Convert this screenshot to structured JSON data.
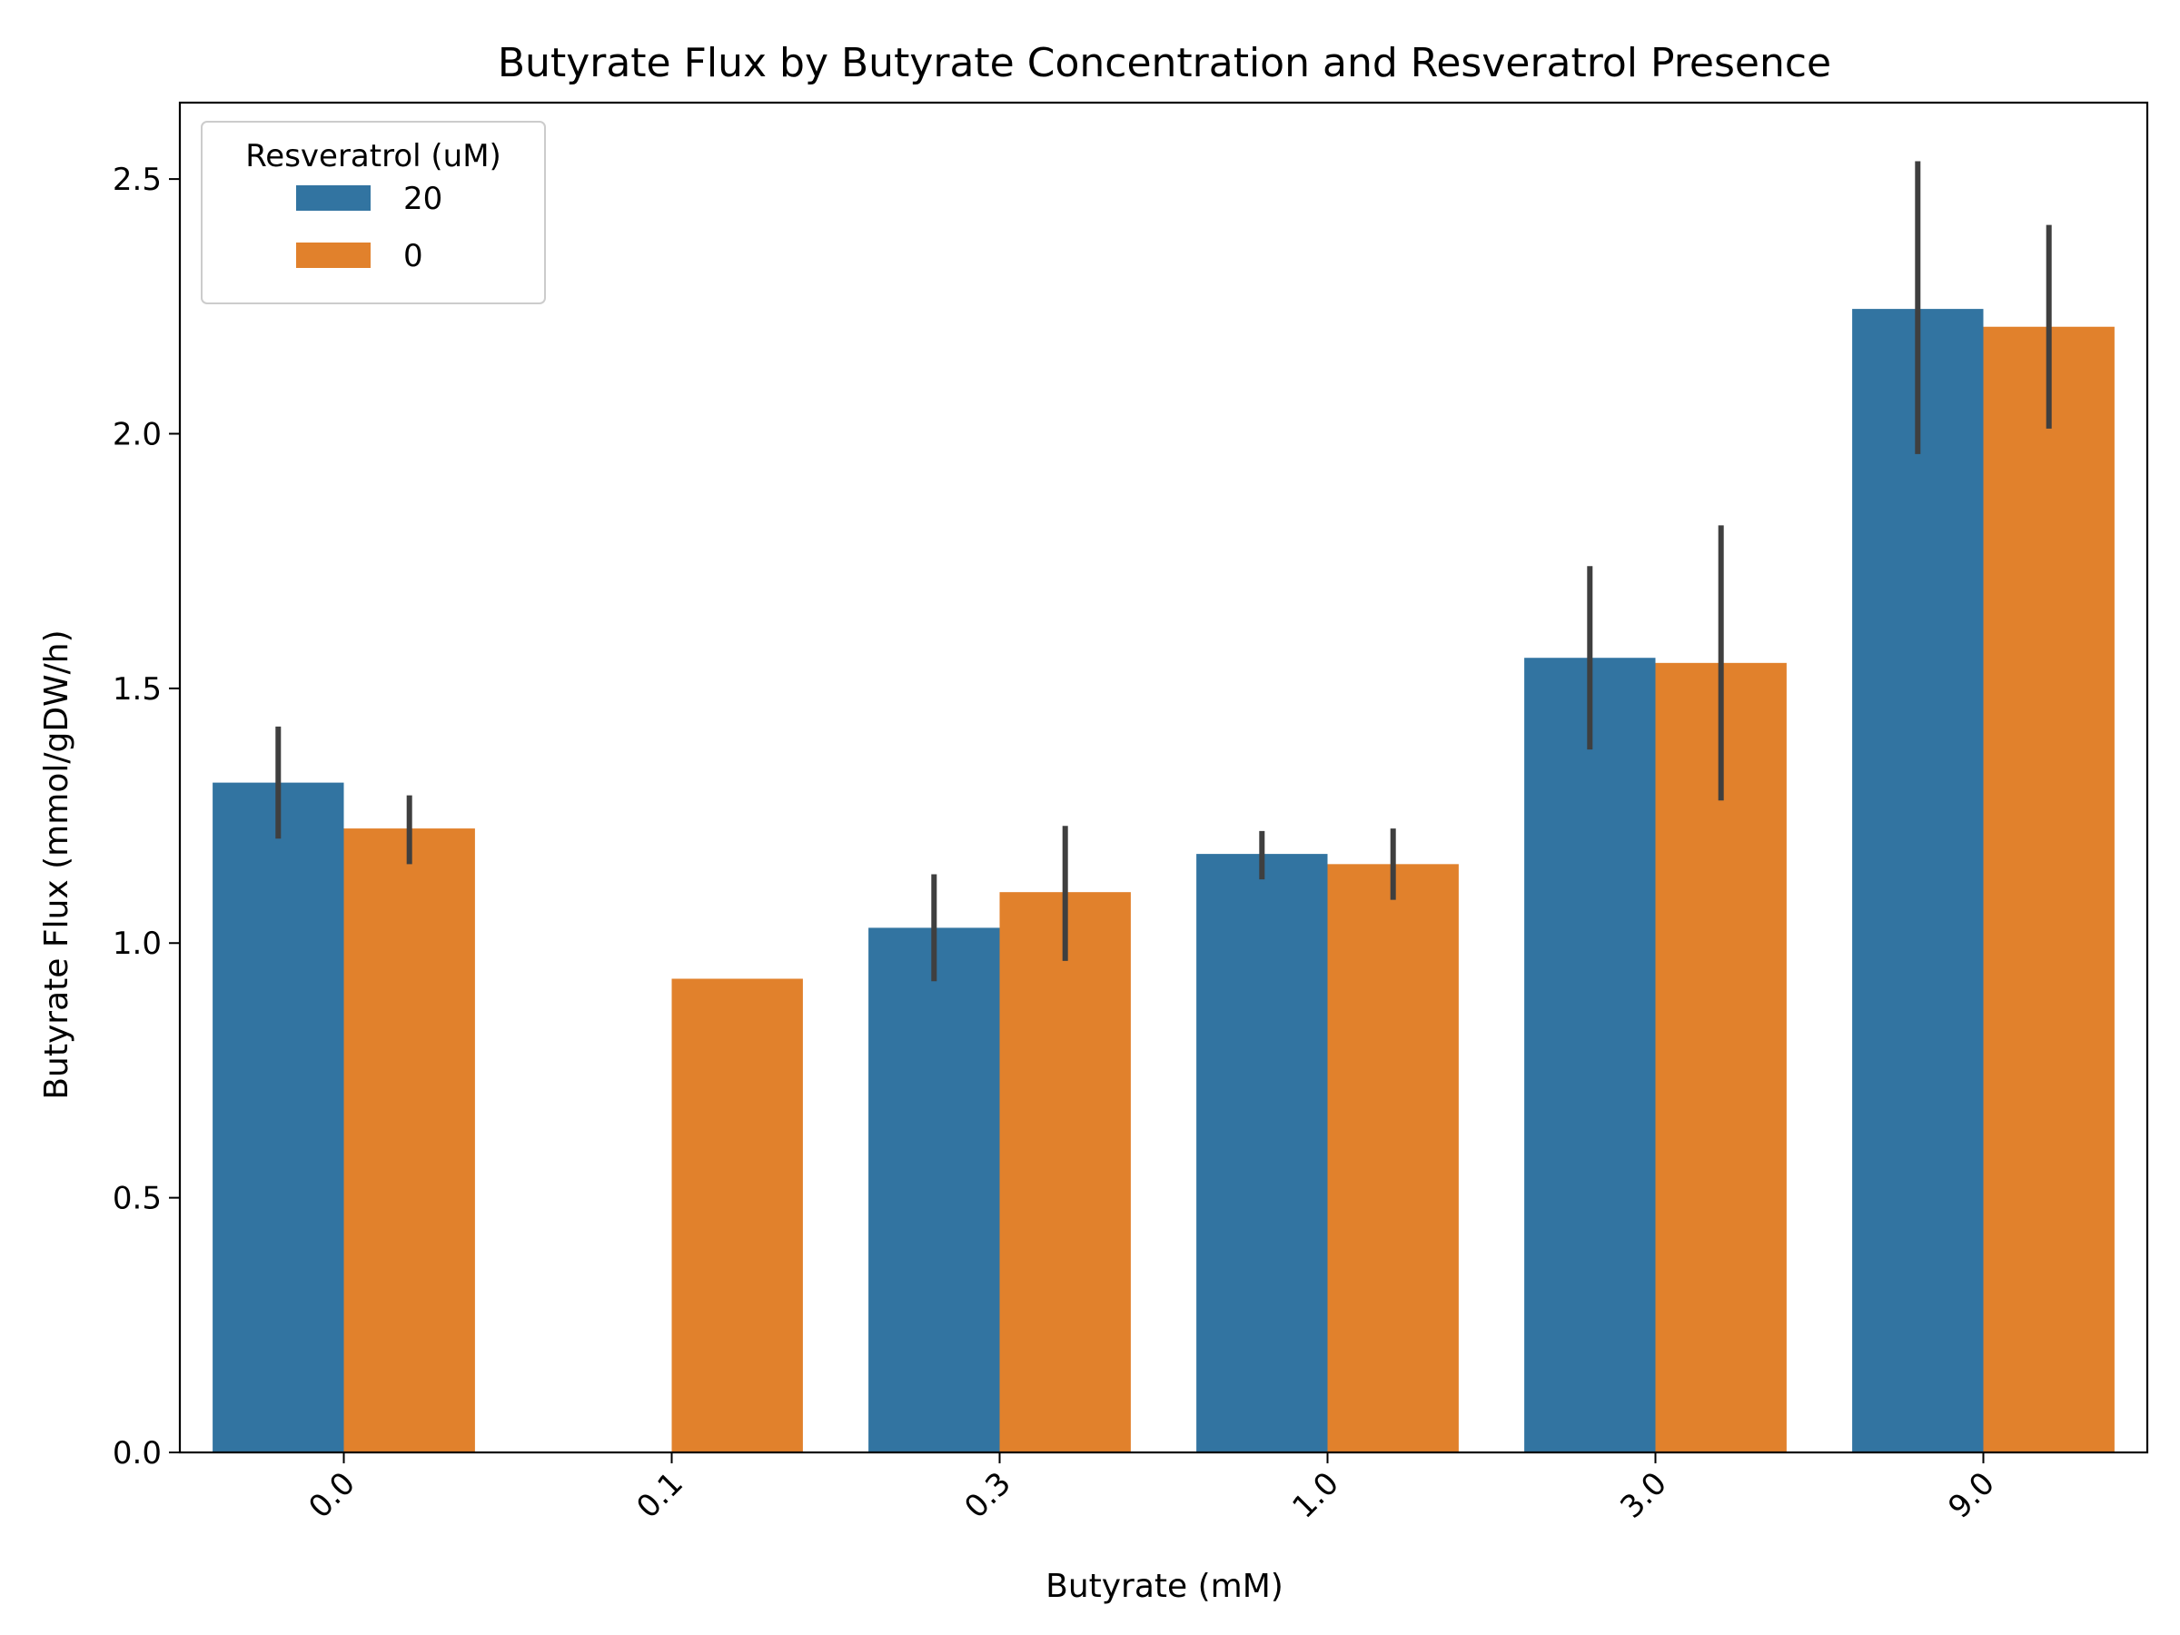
{
  "chart_data": {
    "type": "bar",
    "title": "Butyrate Flux by Butyrate Concentration and Resveratrol Presence",
    "xlabel": "Butyrate (mM)",
    "ylabel": "Butyrate Flux (mmol/gDW/h)",
    "categories": [
      "0.0",
      "0.1",
      "0.3",
      "1.0",
      "3.0",
      "9.0"
    ],
    "ylim": [
      0,
      2.65
    ],
    "yticks": [
      0.0,
      0.5,
      1.0,
      1.5,
      2.0,
      2.5
    ],
    "ytick_labels": [
      "0.0",
      "0.5",
      "1.0",
      "1.5",
      "2.0",
      "2.5"
    ],
    "legend": {
      "title": "Resveratrol (uM)",
      "placement": "upper-left"
    },
    "series": [
      {
        "name": "20",
        "color": "#3274a1",
        "values": [
          1.315,
          null,
          1.03,
          1.175,
          1.56,
          2.245
        ],
        "error_low": [
          1.205,
          null,
          0.925,
          1.125,
          1.38,
          1.96
        ],
        "error_high": [
          1.425,
          null,
          1.135,
          1.22,
          1.74,
          2.535
        ]
      },
      {
        "name": "0",
        "color": "#e1812c",
        "values": [
          1.225,
          0.93,
          1.1,
          1.155,
          1.55,
          2.21
        ],
        "error_low": [
          1.155,
          null,
          0.965,
          1.085,
          1.28,
          2.01
        ],
        "error_high": [
          1.29,
          null,
          1.23,
          1.225,
          1.82,
          2.41
        ]
      }
    ],
    "errorbar_color": "#3f3f3f",
    "tick_rotation_deg": 45
  }
}
